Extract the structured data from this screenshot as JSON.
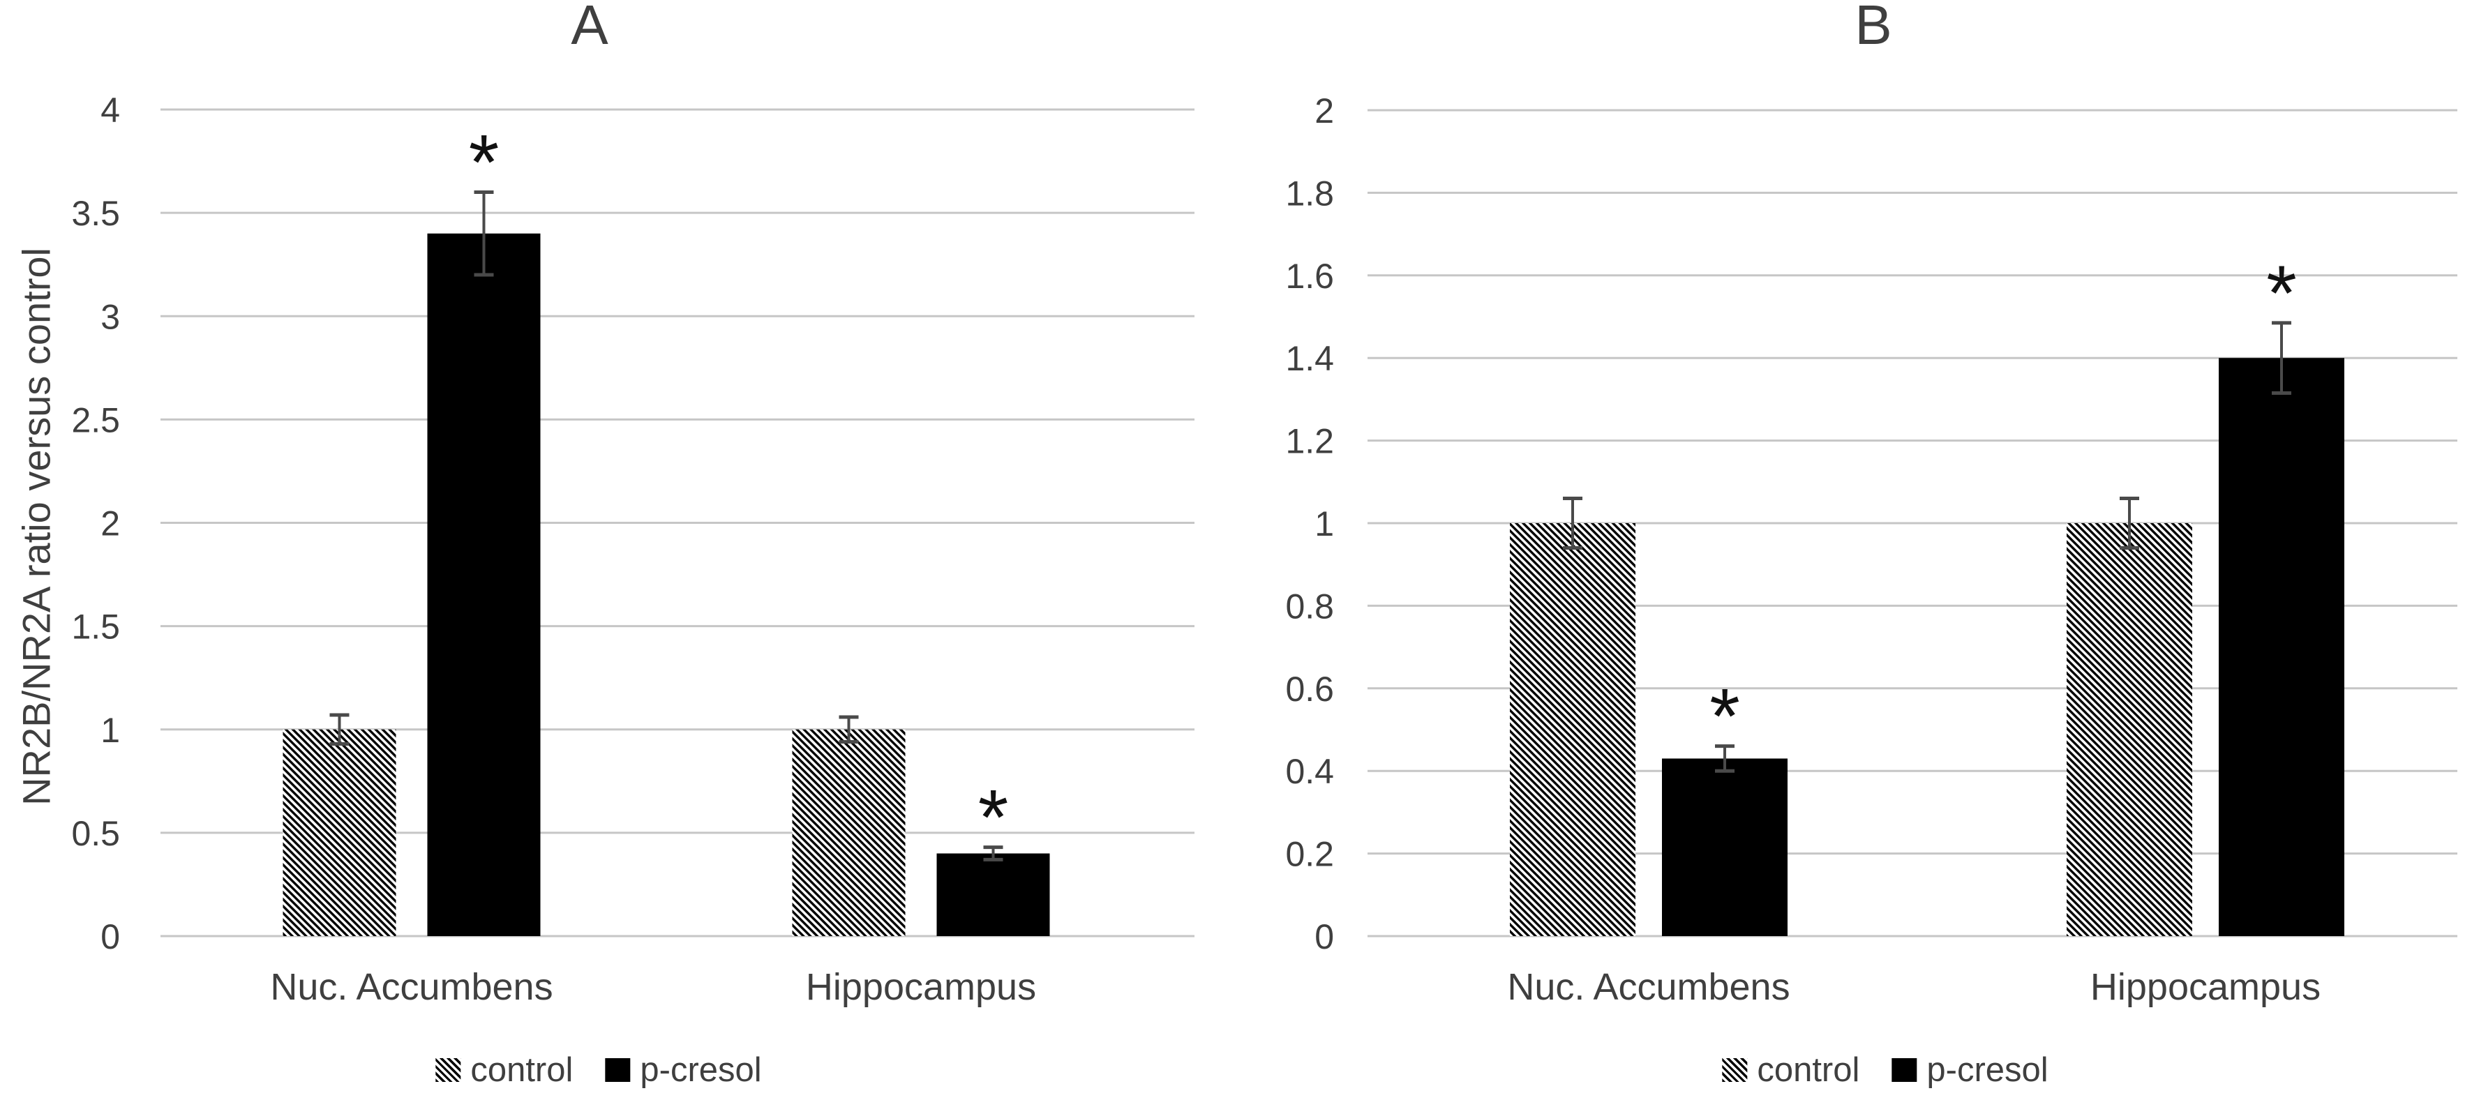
{
  "figure": {
    "background": "#ffffff",
    "text_color": "#3f3f3f",
    "gridline_color": "#c6c6c6",
    "bar_color": "#000000",
    "error_bar_color": "#4a4a4a",
    "asterisk_color": "#111111"
  },
  "chart_data": [
    {
      "type": "bar",
      "panel": "a",
      "title": "A",
      "ylabel": "NR2B/NR2A ratio versus control",
      "xlabel": "",
      "categories": [
        "Nuc. Accumbens",
        "Hippocampus"
      ],
      "series": [
        {
          "name": "control",
          "style": "hatched",
          "values": [
            1.0,
            1.0
          ],
          "errors": [
            0.07,
            0.06
          ],
          "significant": [
            false,
            false
          ]
        },
        {
          "name": "p-cresol",
          "style": "solid",
          "values": [
            3.4,
            0.4
          ],
          "errors": [
            0.2,
            0.03
          ],
          "significant": [
            true,
            true
          ]
        }
      ],
      "ylim": [
        0,
        4
      ],
      "ytick_step": 0.5,
      "yticks": [
        "0",
        "0.5",
        "1",
        "1.5",
        "2",
        "2.5",
        "3",
        "3.5",
        "4"
      ],
      "significance_marker": "*",
      "grid": true,
      "legend_position": "bottom"
    },
    {
      "type": "bar",
      "panel": "b",
      "title": "B",
      "ylabel": "",
      "xlabel": "",
      "categories": [
        "Nuc. Accumbens",
        "Hippocampus"
      ],
      "series": [
        {
          "name": "control",
          "style": "hatched",
          "values": [
            1.0,
            1.0
          ],
          "errors": [
            0.06,
            0.06
          ],
          "significant": [
            false,
            false
          ]
        },
        {
          "name": "p-cresol",
          "style": "solid",
          "values": [
            0.43,
            1.4
          ],
          "errors": [
            0.03,
            0.085
          ],
          "significant": [
            true,
            true
          ]
        }
      ],
      "ylim": [
        0,
        2
      ],
      "ytick_step": 0.2,
      "yticks": [
        "0",
        "0.2",
        "0.4",
        "0.6",
        "0.8",
        "1",
        "1.2",
        "1.4",
        "1.6",
        "1.8",
        "2"
      ],
      "significance_marker": "*",
      "grid": true,
      "legend_position": "bottom"
    }
  ]
}
